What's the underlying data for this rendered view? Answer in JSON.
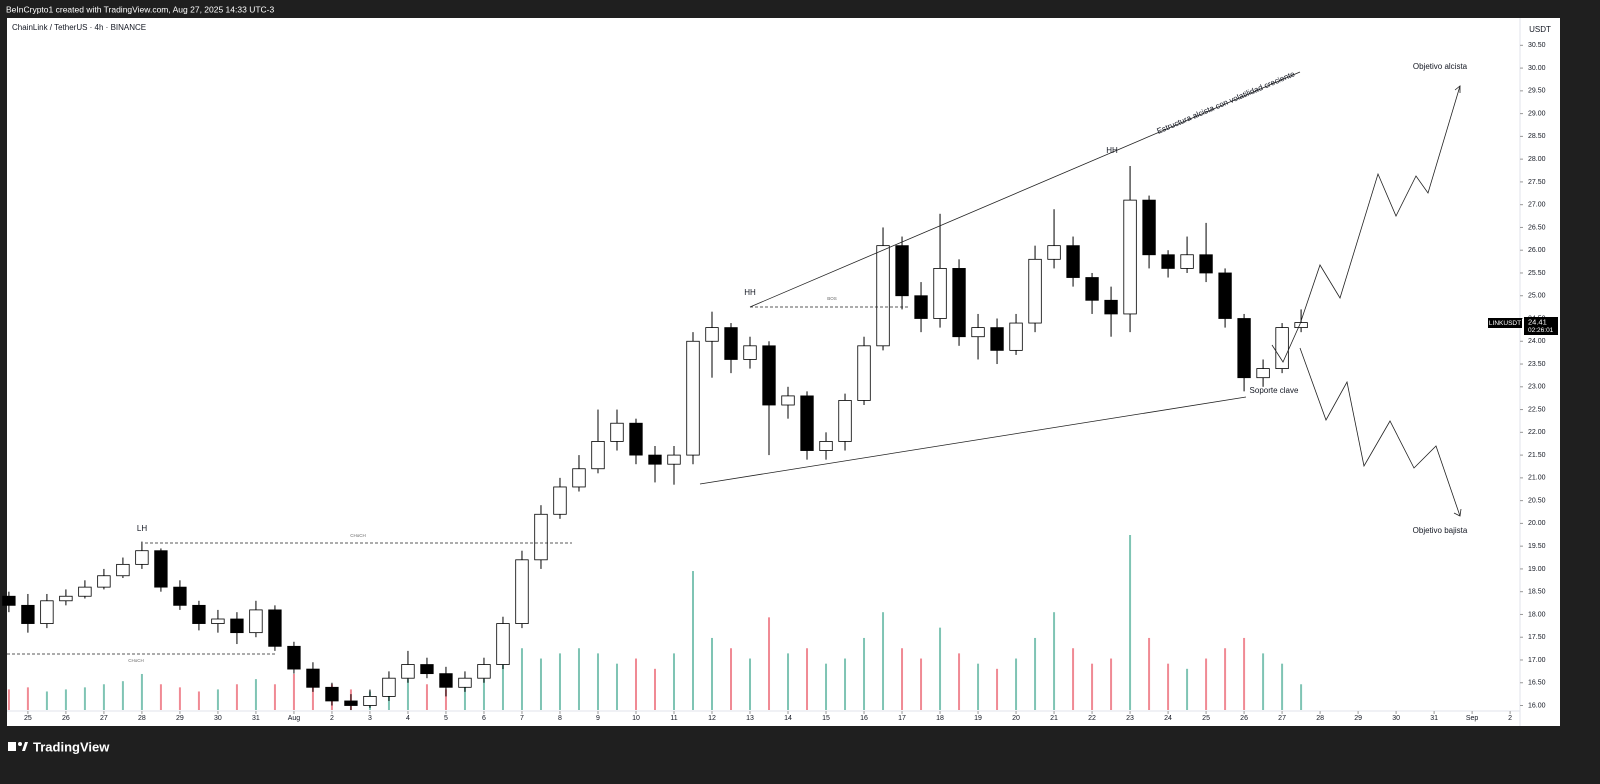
{
  "header": {
    "credit": "BeInCrypto1 created with TradingView.com, Aug 27, 2025 14:33 UTC-3",
    "brand": "TradingView"
  },
  "chart_data": {
    "type": "candlestick",
    "title": "ChainLink / TetherUS · 4h · BINANCE",
    "y_unit": "USDT",
    "symbol": "LINKUSDT",
    "countdown": "02:26:01",
    "up_color": "#ffffff",
    "down_color": "#000000",
    "wick_color": "#000000",
    "volume_up_color": "#7fc4b4",
    "volume_down_color": "#f08a94",
    "xlim": [
      -0.55,
      39.26
    ],
    "ylim": [
      15.55,
      31.1
    ],
    "xticks": [
      {
        "value": 0,
        "label": "25"
      },
      {
        "value": 1,
        "label": "26"
      },
      {
        "value": 2,
        "label": "27"
      },
      {
        "value": 3,
        "label": "28"
      },
      {
        "value": 4,
        "label": "29"
      },
      {
        "value": 5,
        "label": "30"
      },
      {
        "value": 6,
        "label": "31"
      },
      {
        "value": 7,
        "label": "Aug"
      },
      {
        "value": 8,
        "label": "2"
      },
      {
        "value": 9,
        "label": "3"
      },
      {
        "value": 10,
        "label": "4"
      },
      {
        "value": 11,
        "label": "5"
      },
      {
        "value": 12,
        "label": "6"
      },
      {
        "value": 13,
        "label": "7"
      },
      {
        "value": 14,
        "label": "8"
      },
      {
        "value": 15,
        "label": "9"
      },
      {
        "value": 16,
        "label": "10"
      },
      {
        "value": 17,
        "label": "11"
      },
      {
        "value": 18,
        "label": "12"
      },
      {
        "value": 19,
        "label": "13"
      },
      {
        "value": 20,
        "label": "14"
      },
      {
        "value": 21,
        "label": "15"
      },
      {
        "value": 22,
        "label": "16"
      },
      {
        "value": 23,
        "label": "17"
      },
      {
        "value": 24,
        "label": "18"
      },
      {
        "value": 25,
        "label": "19"
      },
      {
        "value": 26,
        "label": "20"
      },
      {
        "value": 27,
        "label": "21"
      },
      {
        "value": 28,
        "label": "22"
      },
      {
        "value": 29,
        "label": "23"
      },
      {
        "value": 30,
        "label": "24"
      },
      {
        "value": 31,
        "label": "25"
      },
      {
        "value": 32,
        "label": "26"
      },
      {
        "value": 33,
        "label": "27"
      },
      {
        "value": 34,
        "label": "28"
      },
      {
        "value": 35,
        "label": "29"
      },
      {
        "value": 36,
        "label": "30"
      },
      {
        "value": 37,
        "label": "31"
      },
      {
        "value": 38,
        "label": "Sep"
      },
      {
        "value": 39,
        "label": "2"
      }
    ],
    "yticks": [
      {
        "value": 16,
        "label": "16.00"
      },
      {
        "value": 16.5,
        "label": "16.50"
      },
      {
        "value": 17,
        "label": "17.00"
      },
      {
        "value": 17.5,
        "label": "17.50"
      },
      {
        "value": 18,
        "label": "18.00"
      },
      {
        "value": 18.5,
        "label": "18.50"
      },
      {
        "value": 19,
        "label": "19.00"
      },
      {
        "value": 19.5,
        "label": "19.50"
      },
      {
        "value": 20,
        "label": "20.00"
      },
      {
        "value": 20.5,
        "label": "20.50"
      },
      {
        "value": 21,
        "label": "21.00"
      },
      {
        "value": 21.5,
        "label": "21.50"
      },
      {
        "value": 22,
        "label": "22.00"
      },
      {
        "value": 22.5,
        "label": "22.50"
      },
      {
        "value": 23,
        "label": "23.00"
      },
      {
        "value": 23.5,
        "label": "23.50"
      },
      {
        "value": 24,
        "label": "24.00"
      },
      {
        "value": 24.5,
        "label": "24.50"
      },
      {
        "value": 25,
        "label": "25.00"
      },
      {
        "value": 25.5,
        "label": "25.50"
      },
      {
        "value": 26,
        "label": "26.00"
      },
      {
        "value": 26.5,
        "label": "26.50"
      },
      {
        "value": 27,
        "label": "27.00"
      },
      {
        "value": 27.5,
        "label": "27.50"
      },
      {
        "value": 28,
        "label": "28.00"
      },
      {
        "value": 28.5,
        "label": "28.50"
      },
      {
        "value": 29,
        "label": "29.00"
      },
      {
        "value": 29.5,
        "label": "29.50"
      },
      {
        "value": 30,
        "label": "30.00"
      },
      {
        "value": 30.5,
        "label": "30.50"
      }
    ],
    "x": [
      -0.5,
      0,
      0.5,
      1,
      1.5,
      2,
      2.5,
      3,
      3.5,
      4,
      4.5,
      5,
      5.5,
      6,
      6.5,
      7,
      7.5,
      8,
      8.5,
      9,
      9.5,
      10,
      10.5,
      11,
      11.5,
      12,
      12.5,
      13,
      13.5,
      14,
      14.5,
      15,
      15.5,
      16,
      16.5,
      17,
      17.5,
      18,
      18.5,
      19,
      19.5,
      20,
      20.5,
      21,
      21.5,
      22,
      22.5,
      23,
      23.5,
      24,
      24.5,
      25,
      25.5,
      26,
      26.5,
      27,
      27.5,
      28,
      28.5,
      29,
      29.5,
      30,
      30.5,
      31,
      31.5,
      32,
      32.5,
      33,
      33.5
    ],
    "open": [
      18.4,
      18.2,
      17.8,
      18.3,
      18.4,
      18.6,
      18.85,
      19.1,
      19.4,
      18.6,
      18.2,
      17.8,
      17.9,
      17.6,
      18.1,
      17.3,
      16.8,
      16.4,
      16.1,
      16.0,
      16.2,
      16.6,
      16.9,
      16.7,
      16.4,
      16.6,
      16.9,
      17.8,
      19.2,
      20.2,
      20.8,
      21.2,
      21.8,
      22.2,
      21.5,
      21.3,
      21.5,
      24.0,
      24.3,
      23.6,
      23.9,
      22.6,
      22.8,
      21.6,
      21.8,
      22.7,
      23.9,
      26.1,
      25.0,
      24.5,
      25.6,
      24.1,
      24.3,
      23.8,
      24.4,
      25.8,
      26.1,
      25.4,
      24.9,
      24.6,
      27.1,
      25.9,
      25.6,
      25.9,
      25.5,
      24.5,
      23.2,
      23.4,
      24.3
    ],
    "high": [
      18.5,
      18.45,
      18.45,
      18.55,
      18.75,
      19.0,
      19.25,
      19.6,
      19.45,
      18.75,
      18.3,
      18.1,
      18.05,
      18.3,
      18.2,
      17.4,
      16.95,
      16.5,
      16.25,
      16.35,
      16.75,
      17.2,
      17.05,
      16.85,
      16.75,
      17.05,
      17.95,
      19.4,
      20.4,
      21.0,
      21.5,
      22.5,
      22.5,
      22.3,
      21.7,
      21.7,
      24.2,
      24.65,
      24.4,
      24.1,
      24.0,
      23.0,
      22.9,
      22.0,
      22.85,
      24.1,
      26.5,
      26.3,
      25.3,
      26.8,
      25.8,
      24.6,
      24.5,
      24.6,
      26.1,
      26.9,
      26.3,
      25.5,
      25.2,
      27.85,
      27.2,
      26.0,
      26.3,
      26.6,
      25.6,
      24.6,
      23.6,
      24.4,
      24.7
    ],
    "low": [
      18.05,
      17.6,
      17.7,
      18.2,
      18.35,
      18.55,
      18.8,
      19.0,
      18.5,
      18.1,
      17.65,
      17.6,
      17.35,
      17.5,
      17.2,
      16.7,
      16.3,
      16.0,
      15.9,
      15.95,
      16.1,
      16.5,
      16.6,
      16.2,
      16.3,
      16.5,
      16.8,
      17.7,
      19.0,
      20.1,
      20.7,
      21.1,
      21.6,
      21.3,
      20.9,
      20.85,
      21.3,
      23.2,
      23.3,
      23.4,
      21.5,
      22.3,
      21.4,
      21.4,
      21.6,
      22.6,
      23.8,
      24.7,
      24.2,
      24.3,
      23.9,
      23.6,
      23.5,
      23.7,
      24.2,
      25.6,
      25.2,
      24.6,
      24.1,
      24.2,
      25.6,
      25.4,
      25.5,
      25.3,
      24.3,
      22.9,
      23.0,
      23.3,
      24.2
    ],
    "close": [
      18.2,
      17.8,
      18.3,
      18.4,
      18.6,
      18.85,
      19.1,
      19.4,
      18.6,
      18.2,
      17.8,
      17.9,
      17.6,
      18.1,
      17.3,
      16.8,
      16.4,
      16.1,
      16.0,
      16.2,
      16.6,
      16.9,
      16.7,
      16.4,
      16.6,
      16.9,
      17.8,
      19.2,
      20.2,
      20.8,
      21.2,
      21.8,
      22.2,
      21.5,
      21.3,
      21.5,
      24.0,
      24.3,
      23.6,
      23.9,
      22.6,
      22.8,
      21.6,
      21.8,
      22.7,
      23.9,
      26.1,
      25.0,
      24.5,
      25.6,
      24.1,
      24.3,
      23.8,
      24.4,
      25.8,
      26.1,
      25.4,
      24.9,
      24.6,
      27.1,
      25.9,
      25.6,
      25.9,
      25.5,
      24.5,
      23.2,
      23.4,
      24.3,
      24.41
    ],
    "volume": [
      20,
      22,
      18,
      20,
      22,
      25,
      28,
      35,
      25,
      22,
      18,
      20,
      25,
      30,
      25,
      35,
      30,
      25,
      20,
      18,
      22,
      30,
      25,
      20,
      25,
      30,
      45,
      60,
      50,
      55,
      60,
      55,
      45,
      50,
      40,
      55,
      135,
      70,
      60,
      50,
      90,
      55,
      60,
      45,
      50,
      70,
      95,
      60,
      50,
      80,
      55,
      45,
      40,
      50,
      70,
      95,
      60,
      45,
      50,
      170,
      70,
      45,
      40,
      50,
      60,
      70,
      55,
      45,
      25
    ],
    "annotations": [
      "LH",
      "CHoCH",
      "CHoCH",
      "HH",
      "BOS",
      "HH",
      "Estructura alcista con volatilidad creciente",
      "Soporte clave",
      "Objetivo alcista",
      "Objetivo bajista"
    ]
  }
}
